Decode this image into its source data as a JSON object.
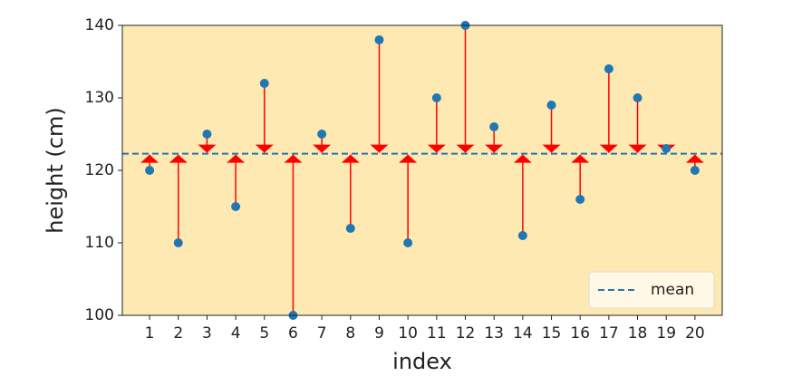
{
  "chart_data": {
    "type": "scatter",
    "x_label": "index",
    "y_label": "height (cm)",
    "x": [
      1,
      2,
      3,
      4,
      5,
      6,
      7,
      8,
      9,
      10,
      11,
      12,
      13,
      14,
      15,
      16,
      17,
      18,
      19,
      20
    ],
    "series": [
      {
        "color": "#1f77b4",
        "values": [
          120,
          110,
          125,
          115,
          132,
          100,
          125,
          112,
          138,
          110,
          130,
          140,
          126,
          111,
          129,
          116,
          134,
          130,
          123,
          120
        ]
      }
    ],
    "mean_line": {
      "name": "mean",
      "value": 122.3,
      "color": "#1f77b4"
    },
    "arrow_color": "#ff0000",
    "xlim": [
      0.05,
      20.95
    ],
    "xticks": [
      1,
      2,
      3,
      4,
      5,
      6,
      7,
      8,
      9,
      10,
      11,
      12,
      13,
      14,
      15,
      16,
      17,
      18,
      19,
      20
    ],
    "ylim": [
      100,
      140
    ],
    "yticks": [
      100,
      110,
      120,
      130,
      140
    ],
    "face_color": "#fde9b1",
    "legend": "lower right"
  }
}
